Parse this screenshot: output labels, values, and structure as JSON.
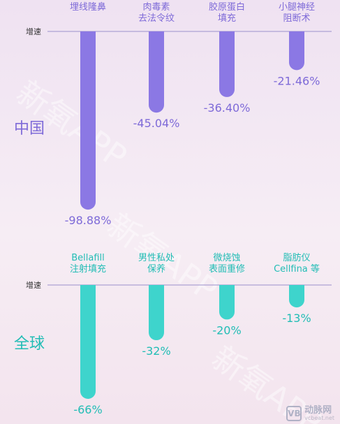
{
  "chart_data": [
    {
      "type": "bar",
      "region_label": "中国",
      "axis_word": "增速",
      "categories": [
        [
          "埋线隆鼻"
        ],
        [
          "肉毒素",
          "去法令纹"
        ],
        [
          "胶原蛋白",
          "填充"
        ],
        [
          "小腿神经",
          "阻断术"
        ]
      ],
      "values": [
        -98.88,
        -45.04,
        -36.4,
        -21.46
      ],
      "value_labels": [
        "-98.88%",
        "-45.04%",
        "-36.40%",
        "-21.46%"
      ],
      "color": "#8b78e4",
      "label_color": "#7e6ad8"
    },
    {
      "type": "bar",
      "region_label": "全球",
      "axis_word": "增速",
      "categories": [
        [
          "Bellafill",
          "注射填充"
        ],
        [
          "男性私处",
          "保养"
        ],
        [
          "微烧蚀",
          "表面重修"
        ],
        [
          "脂肪仪",
          "Cellfina 等"
        ]
      ],
      "values": [
        -66,
        -32,
        -20,
        -13
      ],
      "value_labels": [
        "-66%",
        "-32%",
        "-20%",
        "-13%"
      ],
      "color": "#3ed4cc",
      "label_color": "#22bdb5"
    }
  ],
  "watermark_text": "新氧APP",
  "logo": {
    "badge": "VB",
    "name": "动脉网",
    "site": "vcbeat.net"
  }
}
